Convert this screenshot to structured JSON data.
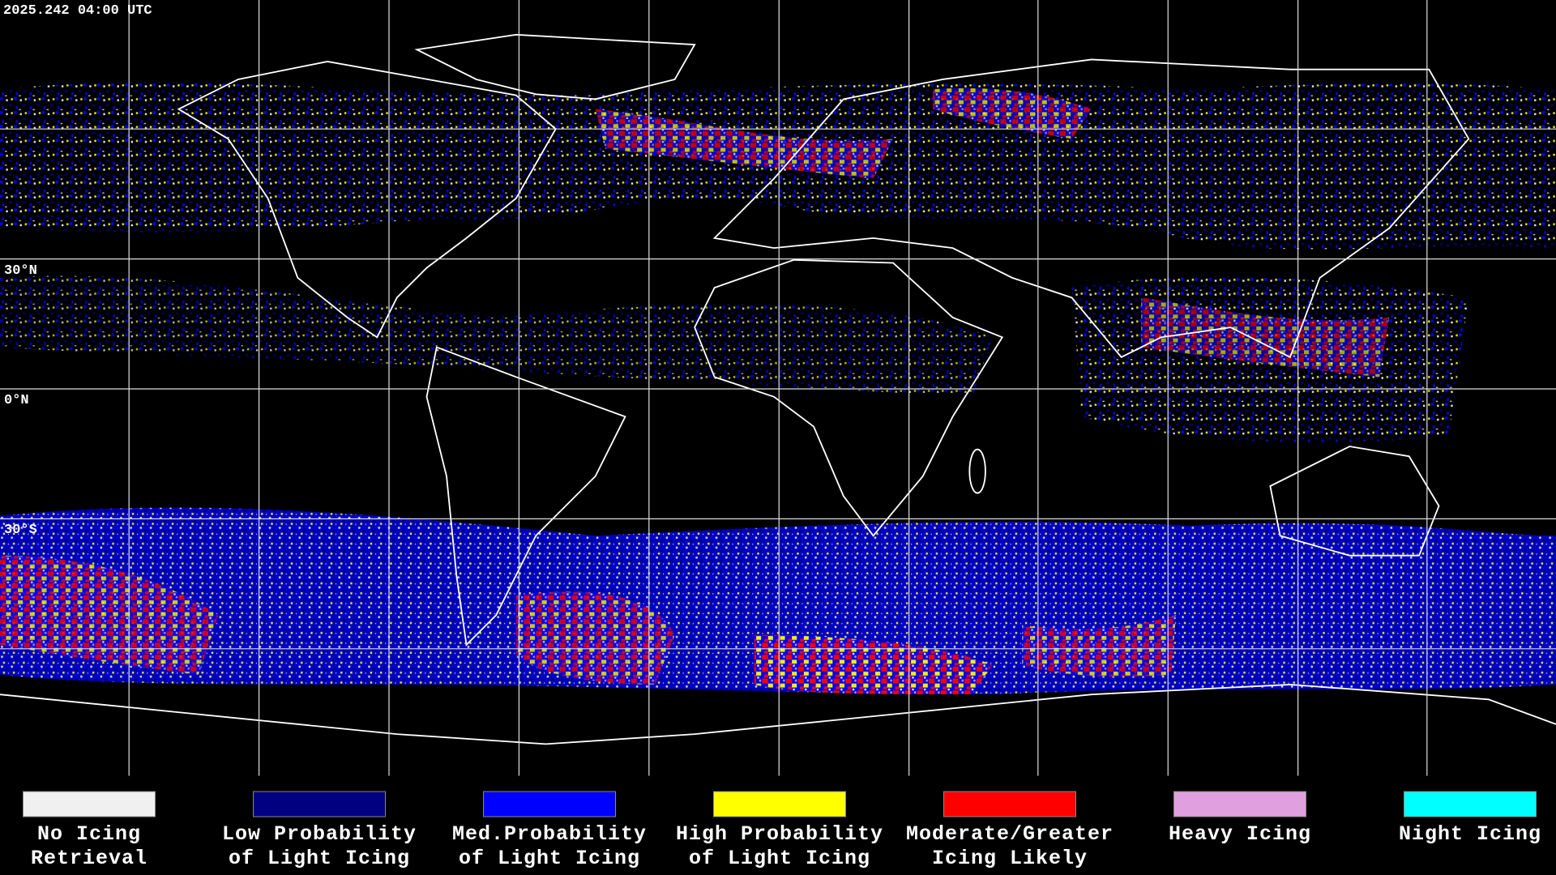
{
  "timestamp": "2025.242 04:00 UTC",
  "latitude_labels": [
    "30°N",
    "0°N",
    "30°S"
  ],
  "legend": [
    {
      "label": [
        "No Icing",
        "Retrieval"
      ],
      "color": "#f0f0f0"
    },
    {
      "label": [
        "Low Probability",
        "of Light Icing"
      ],
      "color": "#000080"
    },
    {
      "label": [
        "Med.Probability",
        "of Light Icing"
      ],
      "color": "#0000ff"
    },
    {
      "label": [
        "High Probability",
        "of Light Icing"
      ],
      "color": "#ffff00"
    },
    {
      "label": [
        "Moderate/Greater",
        "Icing Likely"
      ],
      "color": "#ff0000"
    },
    {
      "label": [
        "Heavy Icing"
      ],
      "color": "#e0a0e0"
    },
    {
      "label": [
        "Night Icing"
      ],
      "color": "#00ffff"
    }
  ]
}
